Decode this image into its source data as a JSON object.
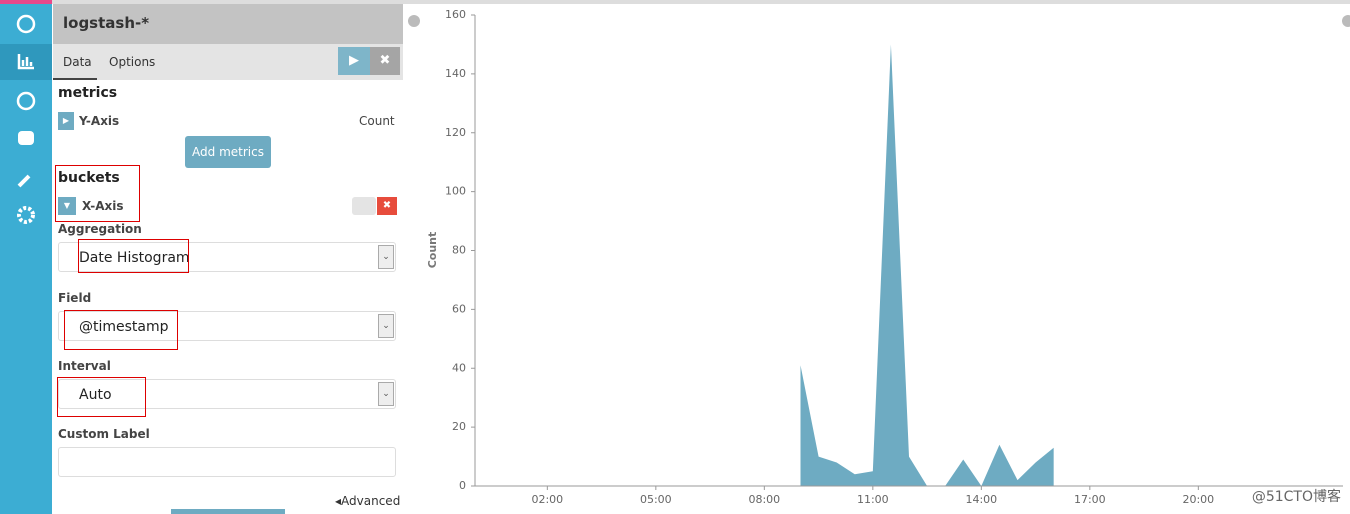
{
  "header": {
    "title": "logstash-*"
  },
  "tabs": [
    "Data",
    "Options"
  ],
  "metrics": {
    "heading": "metrics",
    "y_axis": "Y-Axis",
    "aggregation": "Count",
    "add_button": "Add metrics"
  },
  "buckets": {
    "heading": "buckets",
    "x_axis": "X-Axis",
    "fields": [
      {
        "label": "Aggregation",
        "value": "Date Histogram"
      },
      {
        "label": "Field",
        "value": "@timestamp"
      },
      {
        "label": "Interval",
        "value": "Auto"
      }
    ],
    "custom_label": "Custom Label",
    "advanced": "Advanced"
  },
  "chart_data": {
    "type": "area",
    "y_label": "Count",
    "color": "#6eabc2",
    "x": [
      9,
      9.5,
      10,
      10.5,
      11,
      11.5,
      12,
      12.5,
      13,
      13.5,
      14,
      14.5,
      15,
      15.5,
      16
    ],
    "values": [
      41,
      10,
      8,
      4,
      5,
      150,
      10,
      0,
      0,
      9,
      0,
      14,
      2,
      8,
      13
    ],
    "xlim": [
      0,
      24
    ],
    "xticks": [
      {
        "value": 2,
        "label": "02:00"
      },
      {
        "value": 5,
        "label": "05:00"
      },
      {
        "value": 8,
        "label": "08:00"
      },
      {
        "value": 11,
        "label": "11:00"
      },
      {
        "value": 14,
        "label": "14:00"
      },
      {
        "value": 17,
        "label": "17:00"
      },
      {
        "value": 20,
        "label": "20:00"
      }
    ],
    "ylim": [
      0,
      160
    ],
    "yticks": [
      0,
      20,
      40,
      60,
      80,
      100,
      120,
      140,
      160
    ]
  },
  "watermark": "@51CTO博客"
}
